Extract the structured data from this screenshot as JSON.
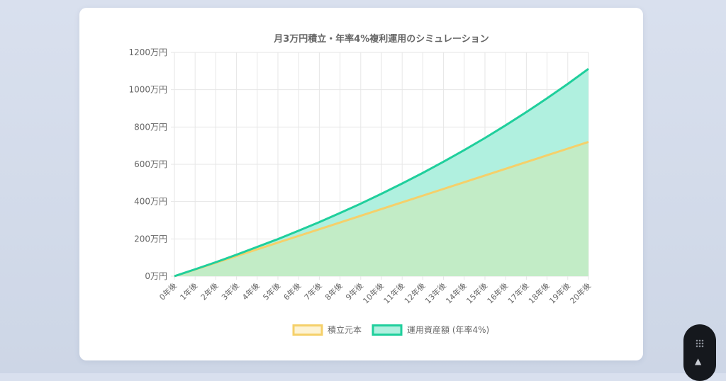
{
  "chart_data": {
    "type": "area",
    "title": "月3万円積立・年率4%複利運用のシミュレーション",
    "categories": [
      "0年後",
      "1年後",
      "2年後",
      "3年後",
      "4年後",
      "5年後",
      "6年後",
      "7年後",
      "8年後",
      "9年後",
      "10年後",
      "11年後",
      "12年後",
      "13年後",
      "14年後",
      "15年後",
      "16年後",
      "17年後",
      "18年後",
      "19年後",
      "20年後"
    ],
    "y_ticks": [
      "0万円",
      "200万円",
      "400万円",
      "600万円",
      "800万円",
      "1000万円",
      "1200万円"
    ],
    "ylim": [
      0,
      1200
    ],
    "grid": true,
    "legend_position": "bottom",
    "series": [
      {
        "name": "積立元本",
        "values": [
          0,
          36,
          72,
          108,
          144,
          180,
          216,
          252,
          288,
          324,
          360,
          396,
          432,
          468,
          504,
          540,
          576,
          612,
          648,
          684,
          720
        ],
        "color": "#f5d06a",
        "fill": "#c2ecc6"
      },
      {
        "name": "運用資産額 (年率4%)",
        "values": [
          0,
          37,
          75,
          115,
          157,
          199,
          244,
          290,
          339,
          389,
          442,
          497,
          554,
          614,
          676,
          741,
          809,
          880,
          954,
          1031,
          1112
        ],
        "color": "#1fcf9c",
        "fill": "#b0f0df"
      }
    ]
  },
  "widget": {
    "arrow": "▲"
  }
}
